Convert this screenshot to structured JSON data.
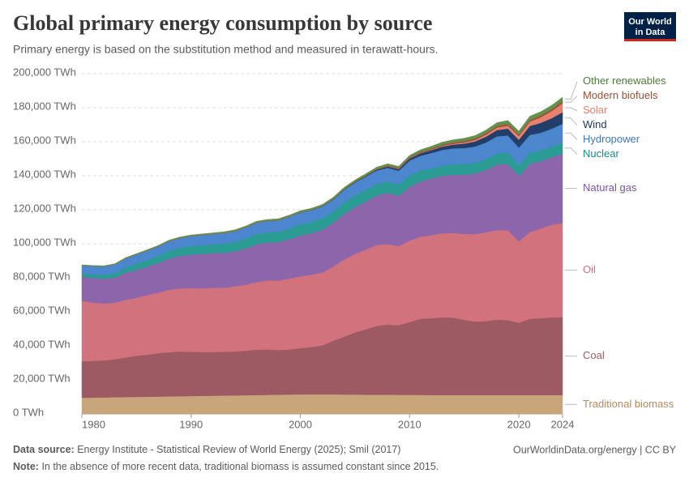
{
  "logo": {
    "line1": "Our World",
    "line2": "in Data"
  },
  "footer": {
    "source_label": "Data source:",
    "source": "Energy Institute - Statistical Review of World Energy (2025); Smil (2017)",
    "link": "OurWorldinData.org/energy | CC BY",
    "note_label": "Note:",
    "note": "In the absence of more recent data, traditional biomass is assumed constant since 2015."
  },
  "chart_data": {
    "type": "stacked-area",
    "title": "Global primary energy consumption by source",
    "subtitle": "Primary energy is based on the substitution method and measured in terawatt-hours.",
    "x": [
      1980,
      1981,
      1982,
      1983,
      1984,
      1985,
      1986,
      1987,
      1988,
      1989,
      1990,
      1991,
      1992,
      1993,
      1994,
      1995,
      1996,
      1997,
      1998,
      1999,
      2000,
      2001,
      2002,
      2003,
      2004,
      2005,
      2006,
      2007,
      2008,
      2009,
      2010,
      2011,
      2012,
      2013,
      2014,
      2015,
      2016,
      2017,
      2018,
      2019,
      2020,
      2021,
      2022,
      2023,
      2024
    ],
    "xlim": [
      1980,
      2024
    ],
    "xticks": [
      1980,
      1990,
      2000,
      2010,
      2020,
      2024
    ],
    "ylim": [
      0,
      200000
    ],
    "yticks": [
      {
        "value": 0,
        "label": "0 TWh"
      },
      {
        "value": 20000,
        "label": "20,000 TWh"
      },
      {
        "value": 40000,
        "label": "40,000 TWh"
      },
      {
        "value": 60000,
        "label": "60,000 TWh"
      },
      {
        "value": 80000,
        "label": "80,000 TWh"
      },
      {
        "value": 100000,
        "label": "100,000 TWh"
      },
      {
        "value": 120000,
        "label": "120,000 TWh"
      },
      {
        "value": 140000,
        "label": "140,000 TWh"
      },
      {
        "value": 160000,
        "label": "160,000 TWh"
      },
      {
        "value": 180000,
        "label": "180,000 TWh"
      },
      {
        "value": 200000,
        "label": "200,000 TWh"
      }
    ],
    "grid": true,
    "series": [
      {
        "name": "Traditional biomass",
        "color": "#c9a57c",
        "label_color": "#b48a5c",
        "values": [
          9500,
          9600,
          9700,
          9800,
          9900,
          10000,
          10100,
          10200,
          10300,
          10400,
          10500,
          10600,
          10700,
          10800,
          10900,
          11000,
          11100,
          11200,
          11300,
          11400,
          11500,
          11500,
          11500,
          11500,
          11400,
          11400,
          11300,
          11300,
          11300,
          11200,
          11200,
          11200,
          11100,
          11100,
          11100,
          11100,
          11100,
          11100,
          11100,
          11100,
          11100,
          11100,
          11100,
          11100,
          11100
        ]
      },
      {
        "name": "Coal",
        "color": "#9e5a62",
        "label_color": "#9e5a62",
        "values": [
          21500,
          21600,
          21800,
          22300,
          23300,
          24200,
          24700,
          25500,
          26000,
          26300,
          26000,
          25800,
          25700,
          25700,
          25800,
          26200,
          26700,
          26700,
          26300,
          26500,
          27200,
          27800,
          28800,
          31500,
          34000,
          36500,
          38500,
          40500,
          41200,
          41000,
          42800,
          44800,
          45200,
          45700,
          45500,
          44200,
          43200,
          43500,
          44300,
          44000,
          42500,
          44800,
          45200,
          45600,
          45800
        ]
      },
      {
        "name": "Oil",
        "color": "#d2727d",
        "label_color": "#d2727d",
        "values": [
          35500,
          34300,
          33400,
          33300,
          33900,
          34100,
          35100,
          35600,
          36700,
          37100,
          37500,
          37400,
          37800,
          37600,
          38300,
          38800,
          39700,
          40600,
          40800,
          41700,
          42200,
          42500,
          42800,
          43600,
          45300,
          46200,
          46800,
          47500,
          47300,
          46500,
          47900,
          48200,
          48800,
          49400,
          49800,
          50500,
          51400,
          52200,
          52700,
          52800,
          47900,
          51000,
          52700,
          54500,
          55300
        ]
      },
      {
        "name": "Natural gas",
        "color": "#8c65ab",
        "label_color": "#7b54a0",
        "values": [
          14200,
          14400,
          14500,
          14700,
          15900,
          16400,
          16700,
          17500,
          18300,
          19200,
          19700,
          20200,
          20300,
          20600,
          20600,
          21300,
          22300,
          22200,
          22600,
          23200,
          24000,
          24500,
          25100,
          25800,
          26800,
          27500,
          28300,
          29200,
          30100,
          29500,
          31600,
          32500,
          33400,
          33800,
          34200,
          34900,
          35600,
          36700,
          38600,
          39000,
          38300,
          40200,
          39600,
          39800,
          40800
        ]
      },
      {
        "name": "Nuclear",
        "color": "#2b9c93",
        "label_color": "#1a8a84",
        "values": [
          1900,
          2200,
          2400,
          2700,
          3200,
          3700,
          4000,
          4300,
          4700,
          4800,
          5000,
          5200,
          5300,
          5400,
          5600,
          5800,
          6000,
          6000,
          6100,
          6300,
          6500,
          6600,
          6700,
          6600,
          6900,
          6900,
          6900,
          6800,
          6700,
          6600,
          6800,
          6400,
          5900,
          6000,
          6100,
          6200,
          6200,
          6300,
          6400,
          6600,
          6300,
          6500,
          6200,
          6300,
          6600
        ]
      },
      {
        "name": "Hydropower",
        "color": "#4b86cf",
        "label_color": "#3a77c2",
        "values": [
          4700,
          4800,
          4900,
          5000,
          5200,
          5300,
          5400,
          5400,
          5600,
          5600,
          5800,
          5900,
          5900,
          6200,
          6200,
          6500,
          6600,
          6700,
          6700,
          6800,
          7000,
          6900,
          7000,
          7000,
          7300,
          7500,
          7700,
          7800,
          8100,
          8100,
          8600,
          8700,
          9000,
          9200,
          9400,
          9400,
          9700,
          9800,
          10100,
          10200,
          10500,
          10400,
          10500,
          10300,
          11000
        ]
      },
      {
        "name": "Wind",
        "color": "#213f6a",
        "label_color": "#1c355c",
        "values": [
          0,
          0,
          0,
          0,
          0,
          0,
          0,
          0,
          10,
          10,
          10,
          10,
          10,
          20,
          20,
          30,
          30,
          40,
          40,
          50,
          110,
          130,
          170,
          210,
          280,
          350,
          440,
          570,
          750,
          930,
          1170,
          1440,
          1720,
          2020,
          2250,
          2620,
          3000,
          3410,
          3710,
          4030,
          4580,
          5260,
          5830,
          6240,
          6800
        ]
      },
      {
        "name": "Solar",
        "color": "#e8826f",
        "label_color": "#e8826f",
        "values": [
          0,
          0,
          0,
          0,
          0,
          0,
          0,
          0,
          0,
          0,
          1,
          1,
          1,
          1,
          1,
          1,
          2,
          2,
          2,
          2,
          3,
          4,
          5,
          7,
          9,
          12,
          16,
          22,
          35,
          60,
          90,
          170,
          260,
          360,
          480,
          660,
          850,
          1160,
          1430,
          1720,
          2080,
          2540,
          3200,
          4100,
          5200
        ]
      },
      {
        "name": "Modern biofuels",
        "color": "#a0533a",
        "label_color": "#9b4e35",
        "values": [
          30,
          40,
          50,
          60,
          70,
          80,
          90,
          100,
          100,
          100,
          110,
          110,
          110,
          120,
          120,
          130,
          140,
          140,
          140,
          150,
          150,
          160,
          180,
          210,
          240,
          280,
          340,
          420,
          540,
          590,
          660,
          670,
          680,
          760,
          820,
          850,
          870,
          920,
          1000,
          1050,
          970,
          1050,
          1130,
          1220,
          1300
        ]
      },
      {
        "name": "Other renewables",
        "color": "#62924c",
        "label_color": "#4c7a3a",
        "values": [
          300,
          320,
          340,
          380,
          410,
          440,
          470,
          490,
          510,
          540,
          580,
          600,
          630,
          650,
          670,
          700,
          720,
          740,
          760,
          780,
          800,
          810,
          840,
          870,
          900,
          930,
          960,
          990,
          1030,
          1080,
          1180,
          1240,
          1330,
          1420,
          1520,
          1620,
          1730,
          1820,
          1910,
          1990,
          2080,
          2150,
          2200,
          2250,
          2300
        ]
      }
    ]
  }
}
